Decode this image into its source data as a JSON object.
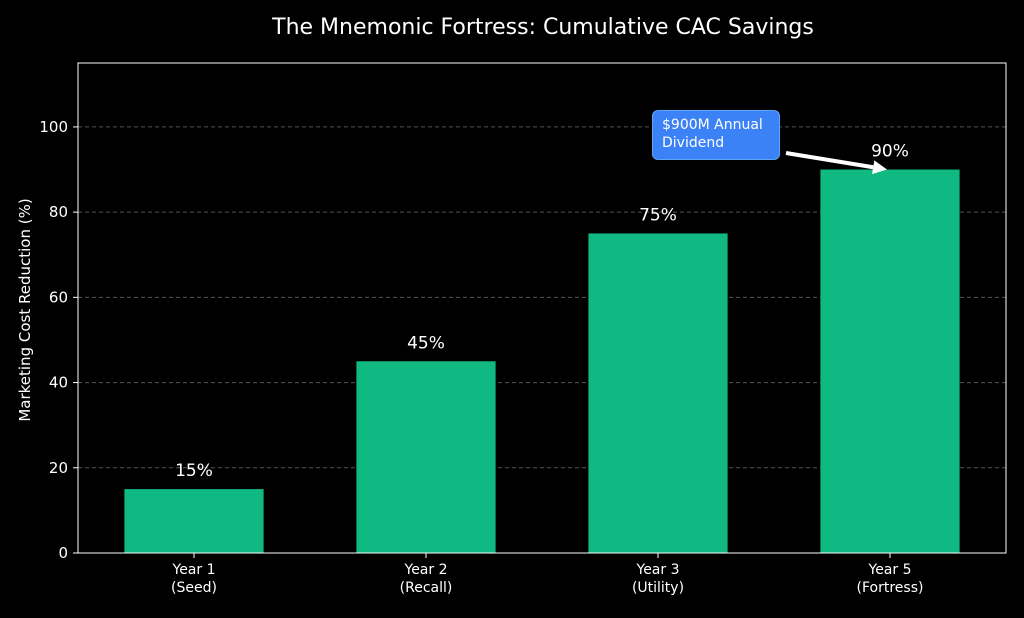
{
  "chart_data": {
    "type": "bar",
    "title": "The Mnemonic Fortress: Cumulative CAC Savings",
    "xlabel": "",
    "ylabel": "Marketing Cost Reduction (%)",
    "categories": [
      "Year 1\n(Seed)",
      "Year 2\n(Recall)",
      "Year 3\n(Utility)",
      "Year 5\n(Fortress)"
    ],
    "values": [
      15,
      45,
      75,
      90
    ],
    "data_labels": [
      "15%",
      "45%",
      "75%",
      "90%"
    ],
    "ylim": [
      0,
      115
    ],
    "yticks": [
      0,
      20,
      40,
      60,
      80,
      100
    ],
    "grid": "horizontal dashed",
    "legend": "none",
    "annotation": {
      "text": "$900M Annual\nDividend",
      "target_category_index": 3
    },
    "colors": {
      "background": "#000000",
      "bar": "#10b981",
      "text": "#ffffff",
      "grid": "#555555",
      "annotation_box": "#3b82f6"
    }
  }
}
